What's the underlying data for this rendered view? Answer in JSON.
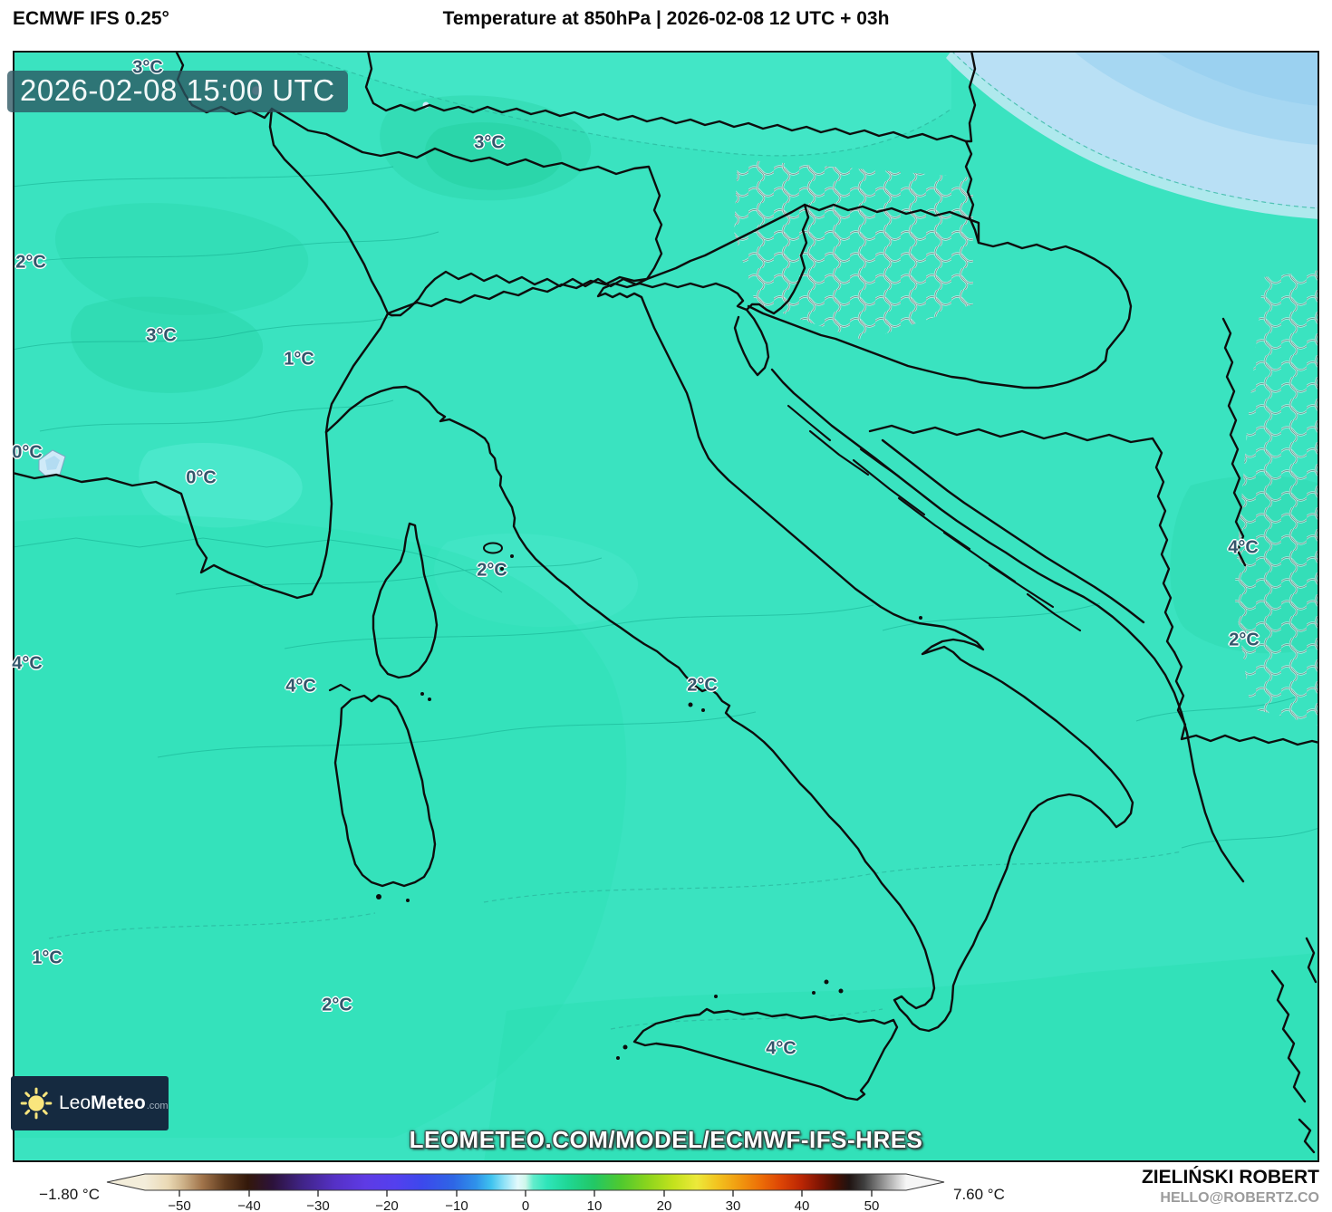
{
  "header": {
    "model": "ECMWF IFS 0.25°",
    "title": "Temperature at 850hPa | 2026-02-08 12 UTC + 03h"
  },
  "map": {
    "timestamp": "2026-02-08 15:00 UTC",
    "watermark": "LEOMETEO.COM/MODEL/ECMWF-IFS-HRES",
    "logo": {
      "prefix": "Leo",
      "bold": "Meteo",
      "suffix": ".com",
      "icon": "sun-icon"
    },
    "temperature_labels": [
      "3°C",
      "3°C",
      "2°C",
      "3°C",
      "1°C",
      "0°C",
      "0°C",
      "2°C",
      "4°C",
      "4°C",
      "2°C",
      "4°C",
      "2°C",
      "1°C",
      "2°C",
      "4°C"
    ]
  },
  "legend": {
    "min_label": "−1.80 °C",
    "max_label": "7.60 °C",
    "ticks": [
      "−50",
      "−40",
      "−30",
      "−20",
      "−10",
      "0",
      "10",
      "20",
      "30",
      "40",
      "50"
    ],
    "gradient": [
      {
        "o": 0.0,
        "c": "#f3edda"
      },
      {
        "o": 0.03,
        "c": "#ead9b5"
      },
      {
        "o": 0.05,
        "c": "#cdb289"
      },
      {
        "o": 0.075,
        "c": "#a1744b"
      },
      {
        "o": 0.105,
        "c": "#5f3b1e"
      },
      {
        "o": 0.135,
        "c": "#33180a"
      },
      {
        "o": 0.168,
        "c": "#2c123b"
      },
      {
        "o": 0.205,
        "c": "#3f2384"
      },
      {
        "o": 0.25,
        "c": "#5531c6"
      },
      {
        "o": 0.29,
        "c": "#5e3be5"
      },
      {
        "o": 0.33,
        "c": "#5340ee"
      },
      {
        "o": 0.365,
        "c": "#3c49ec"
      },
      {
        "o": 0.405,
        "c": "#2e66e5"
      },
      {
        "o": 0.435,
        "c": "#2f92ea"
      },
      {
        "o": 0.455,
        "c": "#3fc3ef"
      },
      {
        "o": 0.472,
        "c": "#90e2f7"
      },
      {
        "o": 0.49,
        "c": "#e3fafc"
      },
      {
        "o": 0.5,
        "c": "#cef6ea"
      },
      {
        "o": 0.51,
        "c": "#62edcc"
      },
      {
        "o": 0.528,
        "c": "#2fe5ba"
      },
      {
        "o": 0.555,
        "c": "#1fd795"
      },
      {
        "o": 0.59,
        "c": "#22c765"
      },
      {
        "o": 0.625,
        "c": "#4fc92f"
      },
      {
        "o": 0.66,
        "c": "#8bd41d"
      },
      {
        "o": 0.695,
        "c": "#c4e21d"
      },
      {
        "o": 0.725,
        "c": "#ece93a"
      },
      {
        "o": 0.752,
        "c": "#f3c31f"
      },
      {
        "o": 0.78,
        "c": "#f19b10"
      },
      {
        "o": 0.808,
        "c": "#ed6f07"
      },
      {
        "o": 0.835,
        "c": "#dd4505"
      },
      {
        "o": 0.862,
        "c": "#bb2604"
      },
      {
        "o": 0.888,
        "c": "#7c1403"
      },
      {
        "o": 0.908,
        "c": "#471003"
      },
      {
        "o": 0.925,
        "c": "#201311"
      },
      {
        "o": 0.945,
        "c": "#3f3f3f"
      },
      {
        "o": 0.963,
        "c": "#7d7d7d"
      },
      {
        "o": 0.982,
        "c": "#bcbcbc"
      },
      {
        "o": 1.0,
        "c": "#f6f6f6"
      }
    ]
  },
  "footer": {
    "author": "ZIELIŃSKI ROBERT",
    "contact": "HELLO@ROBERTZ.CO"
  },
  "colors": {
    "base_teal": "#3ae3c0",
    "cold_blue": "#b9e0f5",
    "label_text": "#33566b",
    "timestamp_bg": "rgba(44,86,98,0.78)",
    "logo_bg": "#152a40",
    "border_black": "#0d0d0d",
    "admin_gray": "#76908e",
    "contour_teal": "#12a88b"
  }
}
